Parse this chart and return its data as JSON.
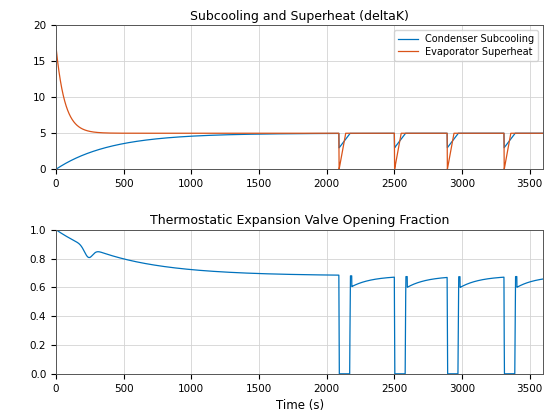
{
  "title1": "Subcooling and Superheat (deltaK)",
  "title2": "Thermostatic Expansion Valve Opening Fraction",
  "xlabel": "Time (s)",
  "legend1": [
    "Condenser Subcooling",
    "Evaporator Superheat"
  ],
  "color_blue": "#0072BD",
  "color_orange": "#D95319",
  "xlim": [
    0,
    3600
  ],
  "ylim1": [
    0,
    20
  ],
  "ylim2": [
    0,
    1
  ],
  "yticks1": [
    0,
    5,
    10,
    15,
    20
  ],
  "yticks2": [
    0,
    0.2,
    0.4,
    0.6,
    0.8,
    1.0
  ],
  "xticks": [
    0,
    500,
    1000,
    1500,
    2000,
    2500,
    3000,
    3500
  ],
  "background": "#ffffff",
  "grid_color": "#d3d3d3",
  "event_times": [
    2090,
    2500,
    2890,
    3310
  ],
  "event_duration": 80,
  "sc_steady": 5.0,
  "sh_start": 17.0,
  "sh_steady": 5.0,
  "valve_start": 1.0,
  "valve_steady": 0.68
}
